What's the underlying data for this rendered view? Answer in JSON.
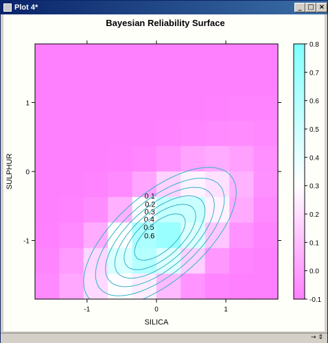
{
  "window": {
    "title": "Plot 4*",
    "buttons": {
      "minimize": "_",
      "maximize": "□",
      "close": "×"
    }
  },
  "chart_data": {
    "type": "heatmap",
    "title": "Bayesian Reliability Surface",
    "xlabel": "SILICA",
    "ylabel": "SULPHUR",
    "xlim": [
      -1.75,
      1.75
    ],
    "ylim": [
      -1.85,
      1.85
    ],
    "x_ticks": [
      -1,
      0,
      1
    ],
    "y_ticks": [
      -1,
      0,
      1
    ],
    "colorbar": {
      "range": [
        -0.1,
        0.8
      ],
      "ticks": [
        "0.8",
        "0.7",
        "0.6",
        "0.5",
        "0.4",
        "0.3",
        "0.2",
        "0.1",
        "0.0",
        "-0.1"
      ],
      "colors": [
        "#ff80ff",
        "#ffffff",
        "#80ffff"
      ]
    },
    "contours": [
      {
        "level": 0.1,
        "label": "0.1"
      },
      {
        "level": 0.2,
        "label": "0.2"
      },
      {
        "level": 0.3,
        "label": "0.3"
      },
      {
        "level": 0.4,
        "label": "0.4"
      },
      {
        "level": 0.5,
        "label": "0.5"
      },
      {
        "level": 0.6,
        "label": "0.6"
      }
    ],
    "grid": false,
    "colors": {
      "contour_line": "#30b0c8",
      "min": "#ff80ff",
      "mid": "#ffffff",
      "max": "#80ffff"
    }
  },
  "status": {
    "glyph": "→ ⇕"
  }
}
